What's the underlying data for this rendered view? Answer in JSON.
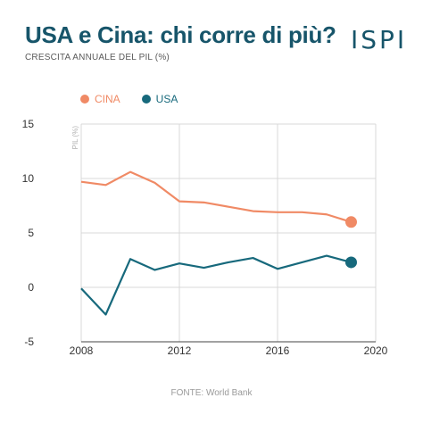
{
  "header": {
    "title": "USA e Cina: chi corre di più?",
    "subtitle": "CRESCITA ANNUALE DEL PIL (%)",
    "logo": "ISPI"
  },
  "footer": {
    "source": "FONTE: World Bank"
  },
  "colors": {
    "cina": "#f08a65",
    "usa": "#17697c",
    "title": "#17556a"
  },
  "chart_data": {
    "type": "line",
    "ylabel": "PIL (%)",
    "xlim": [
      2008,
      2020
    ],
    "ylim": [
      -5,
      15
    ],
    "xticks": [
      2008,
      2012,
      2016,
      2020
    ],
    "yticks": [
      15,
      10,
      5,
      0,
      -5
    ],
    "grid": true,
    "legend_position": "top-left",
    "x": [
      2008,
      2009,
      2010,
      2011,
      2012,
      2013,
      2014,
      2015,
      2016,
      2017,
      2018,
      2019
    ],
    "series": [
      {
        "name": "CINA",
        "color": "#f08a65",
        "values": [
          9.7,
          9.4,
          10.6,
          9.6,
          7.9,
          7.8,
          7.4,
          7.0,
          6.9,
          6.9,
          6.7,
          6.0
        ]
      },
      {
        "name": "USA",
        "color": "#17697c",
        "values": [
          -0.1,
          -2.5,
          2.6,
          1.6,
          2.2,
          1.8,
          2.3,
          2.7,
          1.7,
          2.3,
          2.9,
          2.3
        ]
      }
    ]
  }
}
